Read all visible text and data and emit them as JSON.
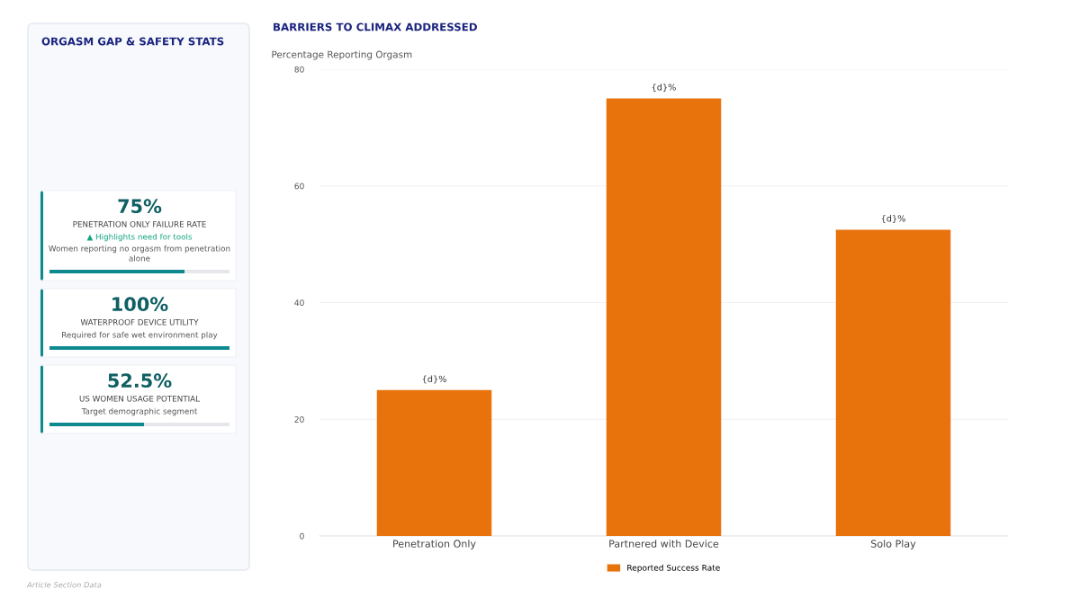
{
  "chart_data": [
    {
      "type": "other",
      "title": "ORGASM GAP & SAFETY STATS",
      "categories": [
        "PENETRATION ONLY FAILURE RATE",
        "WATERPROOF DEVICE UTILITY",
        "US WOMEN USAGE POTENTIAL"
      ],
      "values": [
        75,
        100,
        52.5
      ],
      "value_labels": [
        "75%",
        "100%",
        "52.5%"
      ],
      "annotations": [
        {
          "text": "▲ Highlights need for tools",
          "x": "PENETRATION ONLY FAILURE RATE"
        },
        {
          "text": "Women reporting no orgasm from penetration alone",
          "x": "PENETRATION ONLY FAILURE RATE"
        },
        {
          "text": "Required for safe wet environment play",
          "x": "WATERPROOF DEVICE UTILITY"
        },
        {
          "text": "Target demographic segment",
          "x": "US WOMEN USAGE POTENTIAL"
        }
      ]
    },
    {
      "type": "bar",
      "title": "BARRIERS TO CLIMAX ADDRESSED",
      "ylabel": "Percentage Reporting Orgasm",
      "categories": [
        "Penetration Only",
        "Partnered with Device",
        "Solo Play"
      ],
      "series": [
        {
          "name": "Reported Success Rate",
          "color": "#e8720c",
          "values": [
            25,
            75,
            52.5
          ],
          "value_labels": [
            "{d}%",
            "{d}%",
            "{d}%"
          ]
        }
      ],
      "ylim": [
        0,
        80
      ],
      "yticks": [
        0,
        20,
        40,
        60,
        80
      ],
      "grid": "y",
      "legend": "bottom",
      "annotations": [
        "Article Section Data"
      ]
    }
  ]
}
